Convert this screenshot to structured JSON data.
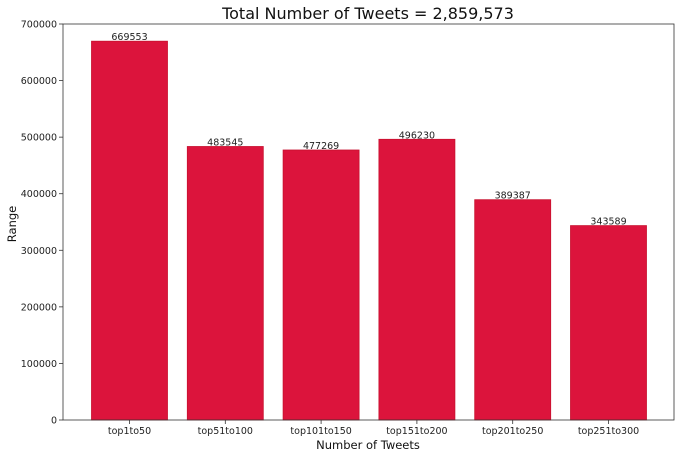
{
  "chart_data": {
    "type": "bar",
    "title": "Total Number of Tweets = 2,859,573",
    "xlabel": "Number of Tweets",
    "ylabel": "Range",
    "categories": [
      "top1to50",
      "top51to100",
      "top101to150",
      "top151to200",
      "top201to250",
      "top251to300"
    ],
    "values": [
      669553,
      483545,
      477269,
      496230,
      389387,
      343589
    ],
    "data_labels": [
      "669553",
      "483545",
      "477269",
      "496230",
      "389387",
      "343589"
    ],
    "ylim": [
      0,
      700000
    ],
    "yticks": [
      0,
      100000,
      200000,
      300000,
      400000,
      500000,
      600000,
      700000
    ],
    "ytick_labels": [
      "0",
      "100000",
      "200000",
      "300000",
      "400000",
      "500000",
      "600000",
      "700000"
    ],
    "grid": false,
    "bar_color": "#dc143c",
    "bar_edge_color": "#c8102e"
  }
}
